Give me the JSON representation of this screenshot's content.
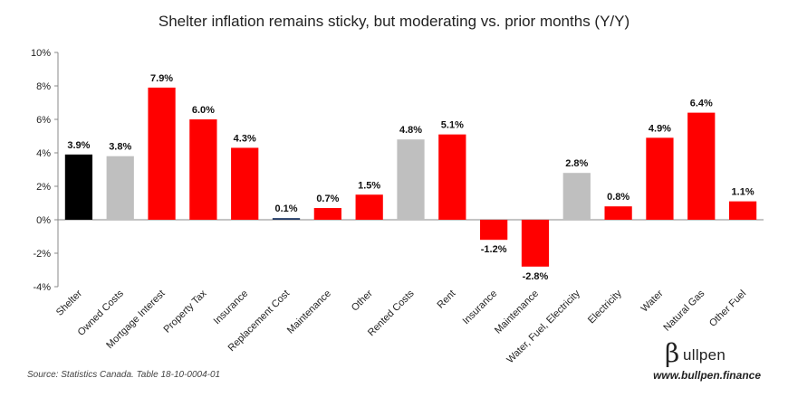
{
  "chart_data": {
    "type": "bar",
    "title": "Shelter inflation remains sticky, but moderating vs. prior months (Y/Y)",
    "xlabel": "",
    "ylabel": "",
    "ylim": [
      -4,
      10
    ],
    "yticks": [
      -4,
      -2,
      0,
      2,
      4,
      6,
      8,
      10
    ],
    "ytick_labels": [
      "-4%",
      "-2%",
      "0%",
      "2%",
      "4%",
      "6%",
      "8%",
      "10%"
    ],
    "grid": false,
    "legend": "none",
    "categories": [
      "Shelter",
      "Owned Costs",
      "Mortgage Interest",
      "Property Tax",
      "Insurance",
      "Replacement Cost",
      "Maintenance",
      "Other",
      "Rented Costs",
      "Rent",
      "Insurance",
      "Maintenance",
      "Water, Fuel, Electricity",
      "Electricity",
      "Water",
      "Natural Gas",
      "Other Fuel"
    ],
    "values": [
      3.9,
      3.8,
      7.9,
      6.0,
      4.3,
      0.1,
      0.7,
      1.5,
      4.8,
      5.1,
      -1.2,
      -2.8,
      2.8,
      0.8,
      4.9,
      6.4,
      1.1
    ],
    "value_labels": [
      "3.9%",
      "3.8%",
      "7.9%",
      "6.0%",
      "4.3%",
      "0.1%",
      "0.7%",
      "1.5%",
      "4.8%",
      "5.1%",
      "-1.2%",
      "-2.8%",
      "2.8%",
      "0.8%",
      "4.9%",
      "6.4%",
      "1.1%"
    ],
    "bar_colors": [
      "#000000",
      "#bfbfbf",
      "#ff0000",
      "#ff0000",
      "#ff0000",
      "#1f3864",
      "#ff0000",
      "#ff0000",
      "#bfbfbf",
      "#ff0000",
      "#ff0000",
      "#ff0000",
      "#bfbfbf",
      "#ff0000",
      "#ff0000",
      "#ff0000",
      "#ff0000"
    ]
  },
  "source": "Source: Statistics Canada. Table 18-10-0004-01",
  "website": "www.bullpen.finance",
  "brand": {
    "symbol": "β",
    "name": "ullpen"
  }
}
